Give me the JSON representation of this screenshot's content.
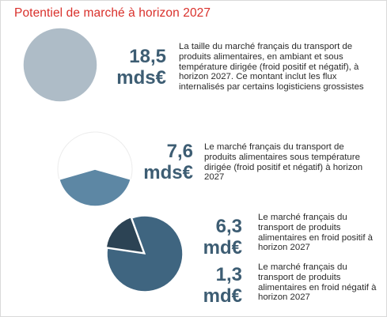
{
  "title": "Potentiel de marché à horizon 2027",
  "colors": {
    "title": "#d9302b",
    "light_blue": "#aebcc7",
    "mid_blue": "#5d87a4",
    "dark_blue": "#3f6580",
    "darkest_blue": "#2c4354",
    "value_text": "#3d5d73"
  },
  "blocks": [
    {
      "value": "18,5",
      "unit": "mds€",
      "description": "La taille du marché français du transport de produits alimentaires, en ambiant et sous température dirigée (froid positif et négatif), à horizon 2027. Ce montant inclut les flux internalisés par certains logisticiens grossistes"
    },
    {
      "value": "7,6",
      "unit": "mds€",
      "description": "Le marché français du transport de produits alimentaires sous température dirigée (froid positif et négatif) à horizon 2027"
    },
    {
      "value": "6,3",
      "unit": "md€",
      "description": "Le marché français du transport de produits alimentaires en froid positif à horizon 2027"
    },
    {
      "value": "1,3",
      "unit": "md€",
      "description": "Le marché français du transport de produits alimentaires en froid négatif à horizon 2027"
    }
  ],
  "chart_data": [
    {
      "type": "pie",
      "total": 18.5,
      "slices": [
        {
          "label": "18,5 mds€",
          "value": 18.5,
          "color": "#aebcc7"
        }
      ]
    },
    {
      "type": "pie",
      "total": 18.5,
      "slices": [
        {
          "label": "7,6 mds€",
          "value": 7.6,
          "color": "#5d87a4"
        }
      ]
    },
    {
      "type": "pie",
      "total": 7.6,
      "slices": [
        {
          "label": "6,3 md€",
          "value": 6.3,
          "color": "#3f6580"
        },
        {
          "label": "1,3 md€",
          "value": 1.3,
          "color": "#2c4354"
        }
      ]
    }
  ]
}
